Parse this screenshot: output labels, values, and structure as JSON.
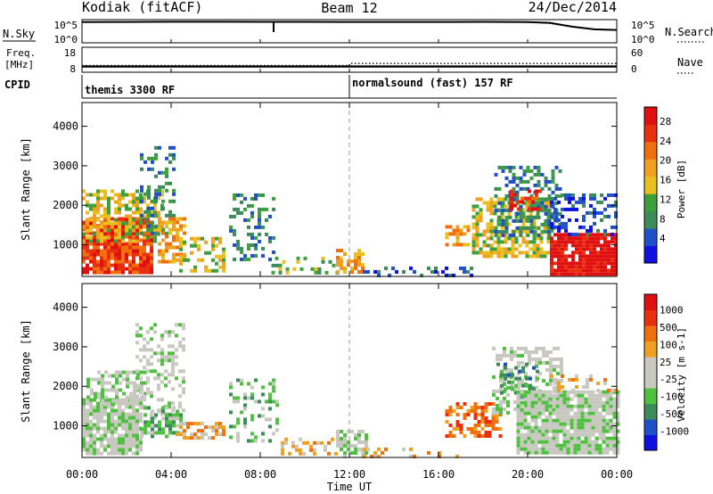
{
  "header": {
    "station": "Kodiak (fitACF)",
    "beam": "Beam 12",
    "date": "24/Dec/2014"
  },
  "small_panels": {
    "nsky_label": "N.Sky",
    "nsky_ticks": [
      "10^5",
      "10^0"
    ],
    "nsearch_label": "N.Search",
    "nsearch_ticks": [
      "10^5",
      "10^0"
    ],
    "freq_label_1": "Freq.",
    "freq_label_2": "[MHz]",
    "freq_ticks": [
      "18",
      "8"
    ],
    "nave_label": "Nave",
    "nave_ticks": [
      "60",
      "0"
    ],
    "cpid_label": "CPID",
    "cpid_segments": [
      {
        "text": "themis 3300 RF",
        "start_hour": 0
      },
      {
        "text": "normalsound (fast) 157 RF",
        "start_hour": 12
      }
    ]
  },
  "x_axis": {
    "title": "Time UT",
    "ticks": [
      "00:00",
      "04:00",
      "08:00",
      "12:00",
      "16:00",
      "20:00",
      "00:00"
    ],
    "tick_hours": [
      0,
      4,
      8,
      12,
      16,
      20,
      24
    ]
  },
  "colors": {
    "power_scale": [
      "#1010e0",
      "#2050c8",
      "#3b8c5a",
      "#3ca03c",
      "#e8c020",
      "#f0a020",
      "#f07010",
      "#e83010",
      "#e01010"
    ],
    "velocity_scale": [
      "#1010e0",
      "#2050c8",
      "#3b8c5a",
      "#50c040",
      "#c8c8c0",
      "#c8c8c0",
      "#f0a020",
      "#f07010",
      "#e83010",
      "#e01010"
    ],
    "ground_scatter": "#c8c8c0"
  },
  "chart_data": [
    {
      "type": "line",
      "panel": "N.Sky / N.Search",
      "ylabel": "N.Sky",
      "ylabel_right": "N.Search",
      "log_scale": true,
      "ylim": [
        1,
        100000
      ],
      "series": [
        {
          "name": "N.Sky",
          "x": [
            0,
            2,
            4,
            6,
            8,
            10,
            12,
            14,
            16,
            18,
            20,
            21,
            22,
            23,
            24
          ],
          "y": [
            30000,
            32000,
            35000,
            34000,
            33000,
            33000,
            32000,
            31000,
            32000,
            33000,
            30000,
            20000,
            3000,
            800,
            600
          ]
        },
        {
          "name": "N.Search",
          "x": [
            0,
            4,
            8,
            12,
            16,
            20,
            21,
            22,
            23,
            24
          ],
          "y": [
            28000,
            30000,
            31000,
            30000,
            30000,
            28000,
            15000,
            2500,
            700,
            500
          ]
        }
      ]
    },
    {
      "type": "line",
      "panel": "Freq / Nave",
      "ylabel": "Freq. [MHz]",
      "ylabel_right": "Nave",
      "ylim": [
        8,
        18
      ],
      "ylim_right": [
        0,
        60
      ],
      "series": [
        {
          "name": "Freq.",
          "x": [
            0,
            24
          ],
          "y": [
            10.3,
            10.3
          ]
        },
        {
          "name": "Nave",
          "x": [
            0,
            12,
            12.01,
            24
          ],
          "y": [
            16,
            16,
            21,
            21
          ]
        }
      ]
    },
    {
      "type": "heatmap",
      "panel": "Power",
      "ylabel": "Slant Range [km]",
      "colorbar_label": "Power [dB]",
      "colorbar_ticks": [
        "28",
        "24",
        "20",
        "16",
        "12",
        "8",
        "4"
      ],
      "xlim": [
        0,
        24
      ],
      "ylim": [
        200,
        4600
      ],
      "yticks": [
        1000,
        2000,
        3000,
        4000
      ],
      "regions": [
        {
          "t0": 0.0,
          "t1": 3.2,
          "r0": 300,
          "r1": 1700,
          "level": 7,
          "density": 0.9
        },
        {
          "t0": 0.0,
          "t1": 3.6,
          "r0": 1100,
          "r1": 2400,
          "level": 4,
          "density": 0.6
        },
        {
          "t0": 2.6,
          "t1": 4.2,
          "r0": 1300,
          "r1": 3500,
          "level": 2,
          "density": 0.35
        },
        {
          "t0": 3.4,
          "t1": 4.6,
          "r0": 600,
          "r1": 1700,
          "level": 5,
          "density": 0.6
        },
        {
          "t0": 4.2,
          "t1": 6.4,
          "r0": 300,
          "r1": 1200,
          "level": 4,
          "density": 0.35
        },
        {
          "t0": 6.6,
          "t1": 8.6,
          "r0": 600,
          "r1": 2300,
          "level": 2,
          "density": 0.3
        },
        {
          "t0": 8.5,
          "t1": 11.6,
          "r0": 250,
          "r1": 700,
          "level": 3,
          "density": 0.3
        },
        {
          "t0": 11.4,
          "t1": 12.6,
          "r0": 350,
          "r1": 900,
          "level": 5,
          "density": 0.55
        },
        {
          "t0": 12.6,
          "t1": 17.5,
          "r0": 200,
          "r1": 450,
          "level": 1,
          "density": 0.2
        },
        {
          "t0": 16.3,
          "t1": 17.4,
          "r0": 1000,
          "r1": 1500,
          "level": 5,
          "density": 0.45
        },
        {
          "t0": 17.5,
          "t1": 21.0,
          "r0": 700,
          "r1": 2200,
          "level": 4,
          "density": 0.6
        },
        {
          "t0": 18.5,
          "t1": 21.5,
          "r0": 1200,
          "r1": 3000,
          "level": 2,
          "density": 0.45
        },
        {
          "t0": 19.2,
          "t1": 20.6,
          "r0": 1900,
          "r1": 2400,
          "level": 7,
          "density": 0.45
        },
        {
          "t0": 21.0,
          "t1": 24.0,
          "r0": 250,
          "r1": 1300,
          "level": 8,
          "density": 0.9
        },
        {
          "t0": 21.0,
          "t1": 24.0,
          "r0": 1300,
          "r1": 2300,
          "level": 1,
          "density": 0.45
        }
      ]
    },
    {
      "type": "heatmap",
      "panel": "Velocity",
      "ylabel": "Slant Range [km]",
      "colorbar_label": "Velocity [m s-1]",
      "colorbar_ticks": [
        "1000",
        "500",
        "100",
        "25",
        "-25",
        "-100",
        "-500",
        "-1000"
      ],
      "xlim": [
        0,
        24
      ],
      "ylim": [
        200,
        4600
      ],
      "yticks": [
        1000,
        2000,
        3000,
        4000
      ],
      "regions": [
        {
          "t0": 0.0,
          "t1": 2.6,
          "r0": 300,
          "r1": 1700,
          "level": 4,
          "density": 0.85
        },
        {
          "t0": 0.2,
          "t1": 2.8,
          "r0": 1500,
          "r1": 2400,
          "level": 4,
          "density": 0.5
        },
        {
          "t0": 2.4,
          "t1": 4.6,
          "r0": 1200,
          "r1": 3600,
          "level": 4,
          "density": 0.35
        },
        {
          "t0": 2.6,
          "t1": 4.4,
          "r0": 700,
          "r1": 1500,
          "level": 3,
          "density": 0.6
        },
        {
          "t0": 4.2,
          "t1": 6.4,
          "r0": 650,
          "r1": 1100,
          "level": 6,
          "density": 0.55
        },
        {
          "t0": 6.6,
          "t1": 8.8,
          "r0": 600,
          "r1": 2200,
          "level": 3,
          "density": 0.3
        },
        {
          "t0": 8.6,
          "t1": 11.4,
          "r0": 250,
          "r1": 700,
          "level": 6,
          "density": 0.25
        },
        {
          "t0": 11.4,
          "t1": 12.8,
          "r0": 250,
          "r1": 900,
          "level": 4,
          "density": 0.6
        },
        {
          "t0": 12.6,
          "t1": 17.0,
          "r0": 200,
          "r1": 450,
          "level": 6,
          "density": 0.2
        },
        {
          "t0": 16.3,
          "t1": 18.8,
          "r0": 700,
          "r1": 1600,
          "level": 7,
          "density": 0.55
        },
        {
          "t0": 18.4,
          "t1": 21.6,
          "r0": 1300,
          "r1": 3000,
          "level": 4,
          "density": 0.45
        },
        {
          "t0": 18.6,
          "t1": 20.4,
          "r0": 1700,
          "r1": 2600,
          "level": 2,
          "density": 0.3
        },
        {
          "t0": 19.5,
          "t1": 24.0,
          "r0": 350,
          "r1": 1900,
          "level": 4,
          "density": 0.9
        },
        {
          "t0": 21.0,
          "t1": 24.0,
          "r0": 1900,
          "r1": 2300,
          "level": 6,
          "density": 0.3
        }
      ]
    }
  ]
}
